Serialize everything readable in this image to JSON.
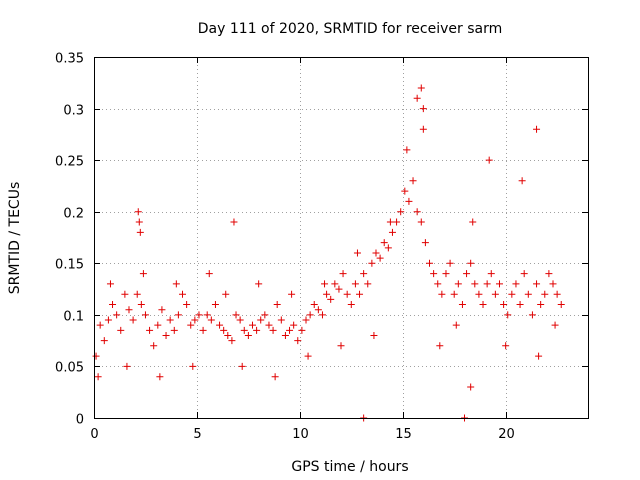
{
  "chart_data": {
    "type": "scatter",
    "title": "Day 111 of 2020, SRMTID for receiver sarm",
    "xlabel": "GPS time / hours",
    "ylabel": "SRMTID / TECUs",
    "xlim": [
      0,
      24
    ],
    "ylim": [
      0,
      0.35
    ],
    "grid": true,
    "x_ticks": [
      0,
      5,
      10,
      15,
      20
    ],
    "x_tick_labels": [
      "0",
      "5",
      "10",
      "15",
      "20"
    ],
    "y_ticks": [
      0,
      0.05,
      0.1,
      0.15,
      0.2,
      0.25,
      0.3,
      0.35
    ],
    "y_tick_labels": [
      "0",
      "0.05",
      "0.1",
      "0.15",
      "0.2",
      "0.25",
      "0.3",
      "0.35"
    ],
    "series": [
      {
        "name": "SRMTID",
        "color": "#e00000",
        "marker": "plus",
        "x": [
          0.1,
          0.3,
          0.5,
          0.7,
          0.9,
          1.1,
          1.3,
          1.5,
          1.7,
          1.9,
          2.1,
          2.2,
          2.3,
          2.5,
          2.7,
          2.9,
          3.1,
          3.3,
          3.5,
          3.7,
          3.9,
          4.1,
          4.3,
          4.5,
          4.7,
          4.9,
          5.1,
          5.3,
          5.5,
          5.7,
          5.9,
          6.1,
          6.3,
          6.5,
          6.7,
          6.9,
          7.1,
          7.3,
          7.5,
          7.7,
          7.9,
          8.1,
          8.3,
          8.5,
          8.7,
          8.9,
          9.1,
          9.3,
          9.5,
          9.7,
          9.9,
          10.1,
          10.3,
          10.5,
          10.7,
          10.9,
          11.1,
          11.3,
          11.5,
          11.7,
          11.9,
          12.1,
          12.3,
          12.5,
          12.7,
          12.9,
          13.1,
          13.3,
          13.5,
          13.7,
          13.9,
          14.1,
          14.3,
          14.5,
          14.7,
          14.9,
          15.1,
          15.3,
          15.5,
          15.7,
          15.9,
          16.1,
          16.3,
          16.5,
          16.7,
          16.9,
          17.1,
          17.3,
          17.5,
          17.7,
          17.9,
          18.1,
          18.3,
          18.5,
          18.7,
          18.9,
          19.1,
          19.3,
          19.5,
          19.7,
          19.9,
          20.1,
          20.3,
          20.5,
          20.7,
          20.9,
          21.1,
          21.3,
          21.5,
          21.7,
          21.9,
          22.1,
          22.3,
          22.5,
          22.7,
          0.2,
          0.8,
          1.6,
          2.4,
          3.2,
          4.0,
          4.8,
          5.6,
          6.4,
          7.2,
          8.0,
          8.8,
          9.6,
          10.4,
          11.2,
          12.0,
          12.8,
          13.6,
          14.4,
          15.2,
          16.0,
          16.8,
          17.6,
          18.4,
          19.2,
          20.0,
          20.8,
          21.6,
          22.4,
          2.15,
          2.25,
          15.7,
          15.9,
          16.0,
          18.0,
          18.3,
          13.1,
          6.8,
          21.5
        ],
        "y": [
          0.06,
          0.09,
          0.075,
          0.095,
          0.11,
          0.1,
          0.085,
          0.12,
          0.105,
          0.095,
          0.12,
          0.19,
          0.11,
          0.1,
          0.085,
          0.07,
          0.09,
          0.105,
          0.08,
          0.095,
          0.085,
          0.1,
          0.12,
          0.11,
          0.09,
          0.095,
          0.1,
          0.085,
          0.1,
          0.095,
          0.11,
          0.09,
          0.085,
          0.08,
          0.075,
          0.1,
          0.095,
          0.085,
          0.08,
          0.09,
          0.085,
          0.095,
          0.1,
          0.09,
          0.085,
          0.11,
          0.095,
          0.08,
          0.085,
          0.09,
          0.075,
          0.085,
          0.095,
          0.1,
          0.11,
          0.105,
          0.1,
          0.12,
          0.115,
          0.13,
          0.125,
          0.14,
          0.12,
          0.11,
          0.13,
          0.12,
          0.14,
          0.13,
          0.15,
          0.16,
          0.155,
          0.17,
          0.165,
          0.18,
          0.19,
          0.2,
          0.22,
          0.21,
          0.23,
          0.2,
          0.19,
          0.17,
          0.15,
          0.14,
          0.13,
          0.12,
          0.14,
          0.15,
          0.12,
          0.13,
          0.11,
          0.14,
          0.15,
          0.13,
          0.12,
          0.11,
          0.13,
          0.14,
          0.12,
          0.13,
          0.11,
          0.1,
          0.12,
          0.13,
          0.11,
          0.14,
          0.12,
          0.1,
          0.13,
          0.11,
          0.12,
          0.14,
          0.13,
          0.12,
          0.11,
          0.04,
          0.13,
          0.05,
          0.14,
          0.04,
          0.13,
          0.05,
          0.14,
          0.12,
          0.05,
          0.13,
          0.04,
          0.12,
          0.06,
          0.13,
          0.07,
          0.16,
          0.08,
          0.19,
          0.26,
          0.28,
          0.07,
          0.09,
          0.19,
          0.25,
          0.07,
          0.23,
          0.06,
          0.09,
          0.2,
          0.18,
          0.31,
          0.32,
          0.3,
          0.0,
          0.03,
          0.0,
          0.19,
          0.28
        ]
      }
    ]
  }
}
